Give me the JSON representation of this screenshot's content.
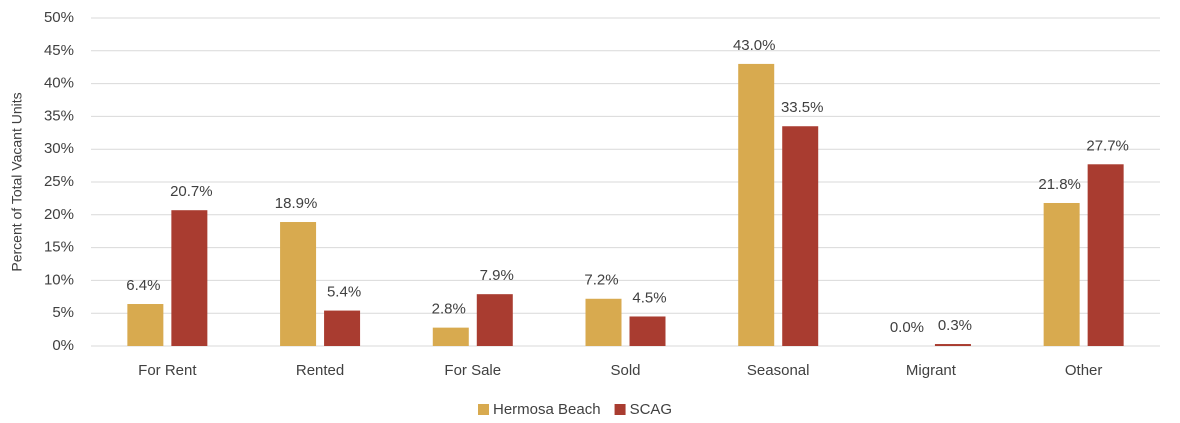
{
  "chart_data": {
    "type": "bar",
    "y_label": "Percent of Total Vacant Units",
    "categories": [
      "For Rent",
      "Rented",
      "For Sale",
      "Sold",
      "Seasonal",
      "Migrant",
      "Other"
    ],
    "series": [
      {
        "name": "Hermosa Beach",
        "color": "#d8aa4f",
        "values": [
          6.4,
          18.9,
          2.8,
          7.2,
          43.0,
          0.0,
          21.8
        ],
        "value_labels": [
          "6.4%",
          "18.9%",
          "2.8%",
          "7.2%",
          "43.0%",
          "0.0%",
          "21.8%"
        ]
      },
      {
        "name": "SCAG",
        "color": "#a93c30",
        "values": [
          20.7,
          5.4,
          7.9,
          4.5,
          33.5,
          0.3,
          27.7
        ],
        "value_labels": [
          "20.7%",
          "5.4%",
          "7.9%",
          "4.5%",
          "33.5%",
          "0.3%",
          "27.7%"
        ]
      }
    ],
    "ylim": [
      0,
      50
    ],
    "yticks": [
      {
        "value": 0,
        "label": "0%"
      },
      {
        "value": 5,
        "label": "5%"
      },
      {
        "value": 10,
        "label": "10%"
      },
      {
        "value": 15,
        "label": "15%"
      },
      {
        "value": 20,
        "label": "20%"
      },
      {
        "value": 25,
        "label": "25%"
      },
      {
        "value": 30,
        "label": "30%"
      },
      {
        "value": 35,
        "label": "35%"
      },
      {
        "value": 40,
        "label": "40%"
      },
      {
        "value": 45,
        "label": "45%"
      },
      {
        "value": 50,
        "label": "50%"
      }
    ],
    "grid": true,
    "legend": "bottom"
  }
}
